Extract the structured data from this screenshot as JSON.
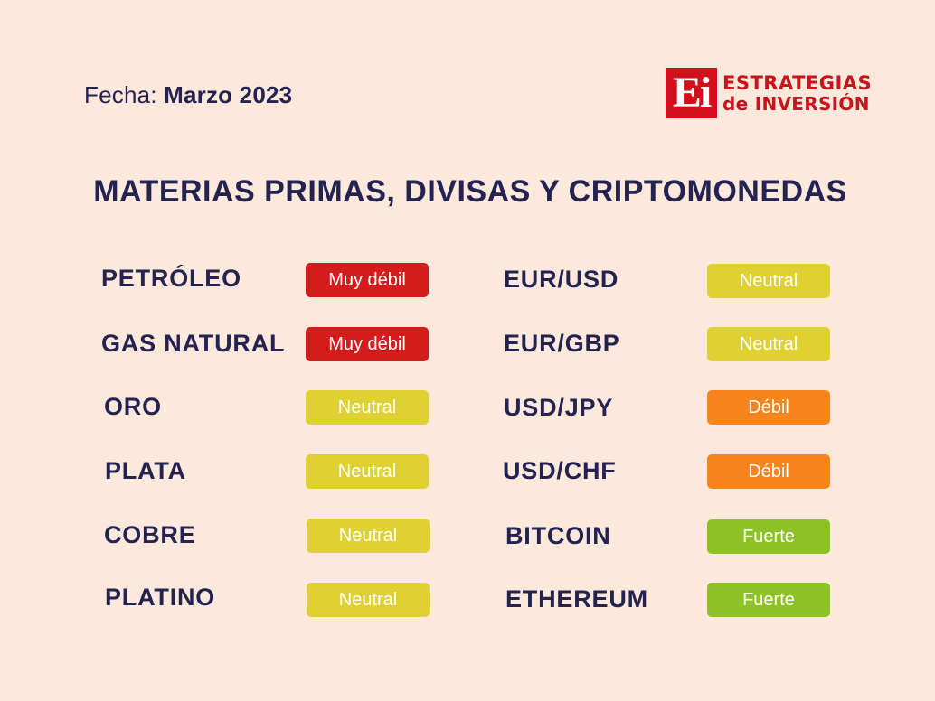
{
  "header": {
    "date_label": "Fecha:",
    "date_value": "Marzo 2023"
  },
  "logo": {
    "mark": "Ei",
    "line1": "ESTRATEGIAS",
    "line2": "de INVERSIÓN",
    "color": "#d0101a"
  },
  "title": "MATERIAS PRIMAS, DIVISAS Y CRIPTOMONEDAS",
  "status_colors": {
    "Muy débil": "#d41c1c",
    "Neutral": "#dfd132",
    "Débil": "#f7841c",
    "Fuerte": "#8cc224"
  },
  "left_column": [
    {
      "name": "PETRÓLEO",
      "status": "Muy débil"
    },
    {
      "name": "GAS NATURAL",
      "status": "Muy débil"
    },
    {
      "name": "ORO",
      "status": "Neutral"
    },
    {
      "name": "PLATA",
      "status": "Neutral"
    },
    {
      "name": "COBRE",
      "status": "Neutral"
    },
    {
      "name": "PLATINO",
      "status": "Neutral"
    }
  ],
  "right_column": [
    {
      "name": "EUR/USD",
      "status": "Neutral"
    },
    {
      "name": "EUR/GBP",
      "status": "Neutral"
    },
    {
      "name": "USD/JPY",
      "status": "Débil"
    },
    {
      "name": "USD/CHF",
      "status": "Débil"
    },
    {
      "name": "BITCOIN",
      "status": "Fuerte"
    },
    {
      "name": "ETHEREUM",
      "status": "Fuerte"
    }
  ]
}
